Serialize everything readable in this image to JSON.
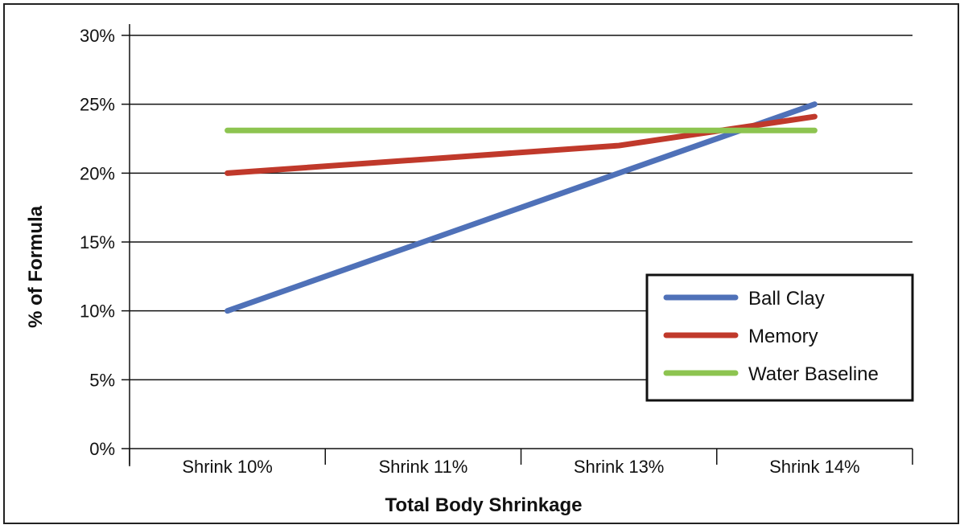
{
  "chart_data": {
    "type": "line",
    "title": "",
    "xlabel": "Total Body Shrinkage",
    "ylabel": "% of Formula",
    "categories": [
      "Shrink 10%",
      "Shrink 11%",
      "Shrink 13%",
      "Shrink 14%"
    ],
    "y_ticks": [
      "0%",
      "5%",
      "10%",
      "15%",
      "20%",
      "25%",
      "30%"
    ],
    "ylim": [
      0,
      30
    ],
    "y_unit": "%",
    "grid": true,
    "legend_position": "right",
    "series": [
      {
        "name": "Ball Clay",
        "values": [
          10,
          15,
          20,
          25
        ],
        "color": "#4f71b8"
      },
      {
        "name": "Memory",
        "values": [
          20,
          21,
          22,
          24.1
        ],
        "color": "#c0392b"
      },
      {
        "name": "Water Baseline",
        "values": [
          23.1,
          23.1,
          23.1,
          23.1
        ],
        "color": "#8dc450"
      }
    ]
  }
}
